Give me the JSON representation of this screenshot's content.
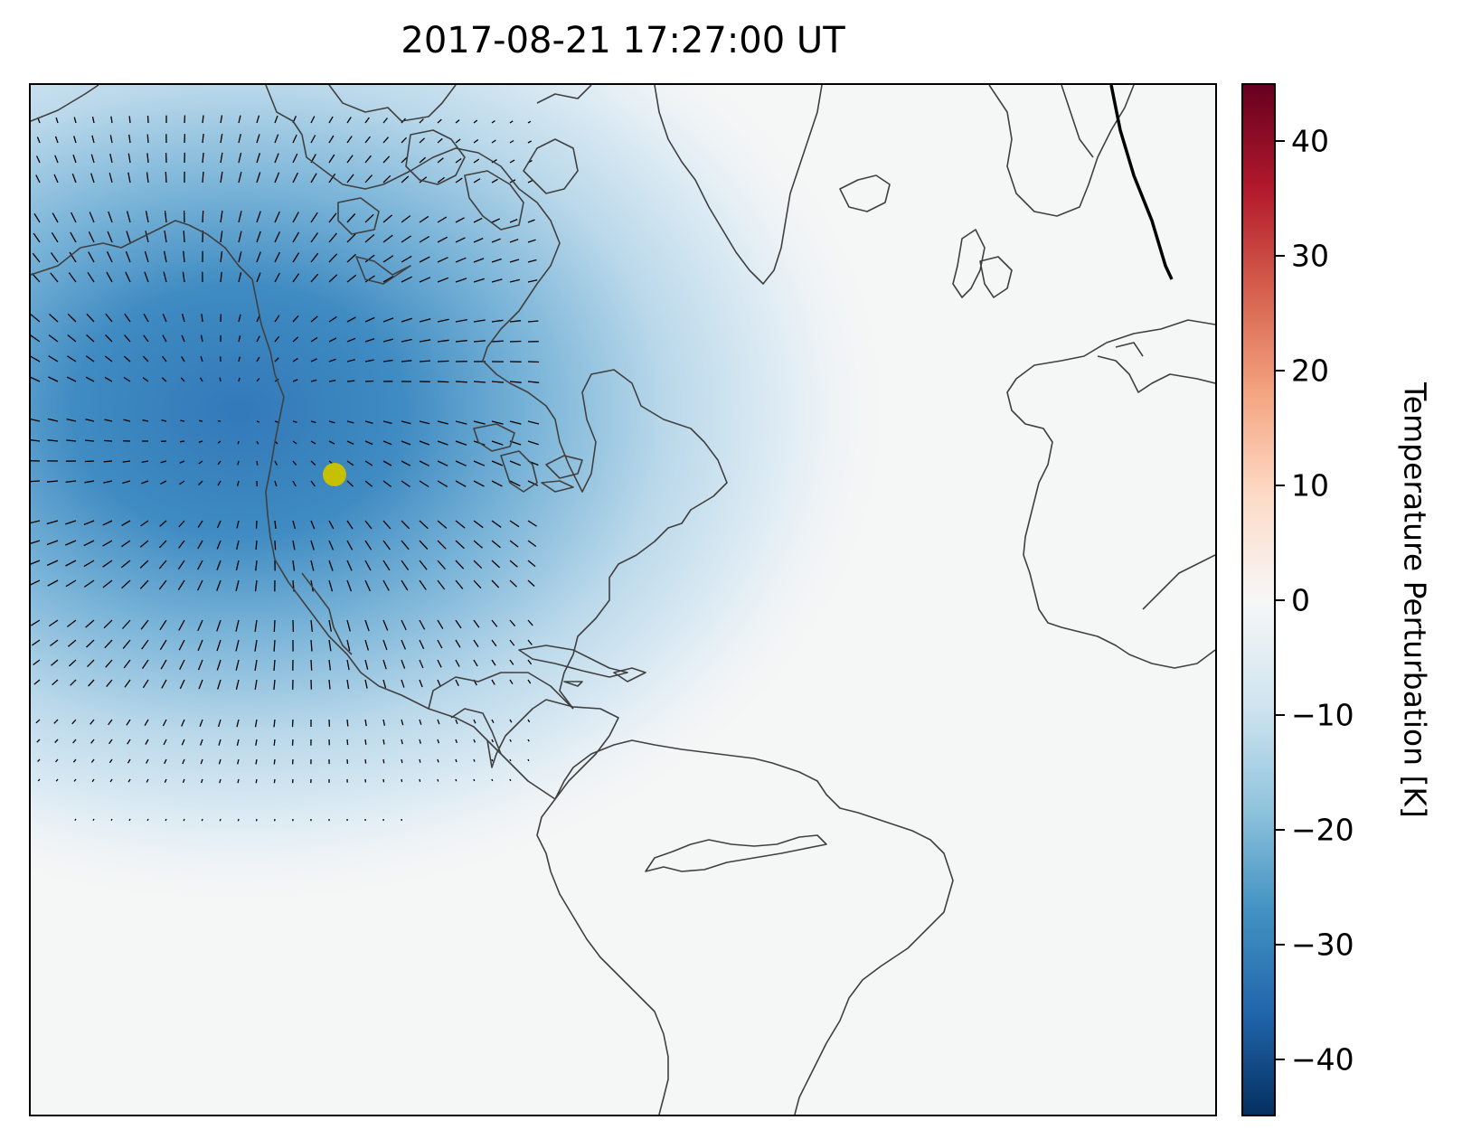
{
  "title": "2017-08-21 17:27:00 UT",
  "colorbar": {
    "label": "Temperature Perturbation [K]",
    "range": [
      -45,
      45
    ],
    "cmap": "RdBu_r",
    "ticks": [
      {
        "value": 40,
        "label": "40"
      },
      {
        "value": 30,
        "label": "30"
      },
      {
        "value": 20,
        "label": "20"
      },
      {
        "value": 10,
        "label": "10"
      },
      {
        "value": 0,
        "label": "0"
      },
      {
        "value": -10,
        "label": "−10"
      },
      {
        "value": -20,
        "label": "−20"
      },
      {
        "value": -30,
        "label": "−30"
      },
      {
        "value": -40,
        "label": "−40"
      }
    ],
    "colors": [
      "#053061",
      "#2166ac",
      "#4393c3",
      "#92c5de",
      "#d1e5f0",
      "#f7f7f7",
      "#fddbc7",
      "#f4a582",
      "#d6604d",
      "#b2182b",
      "#67001f"
    ]
  },
  "map": {
    "region": "North Atlantic / Americas",
    "coastline_color": "#404040",
    "terminator_color": "#000000",
    "ocean_land_fill": "#f5f6f6",
    "marker": {
      "name": "eclipse-center",
      "color": "#c5c000"
    },
    "wind_vectors": "black line segments"
  },
  "chart_data": {
    "type": "heatmap",
    "title": "2017-08-21 17:27:00 UT",
    "colorbar_label": "Temperature Perturbation [K]",
    "vmin": -45,
    "vmax": 45,
    "min_value_estimate": -33,
    "max_value_estimate": 0
  }
}
